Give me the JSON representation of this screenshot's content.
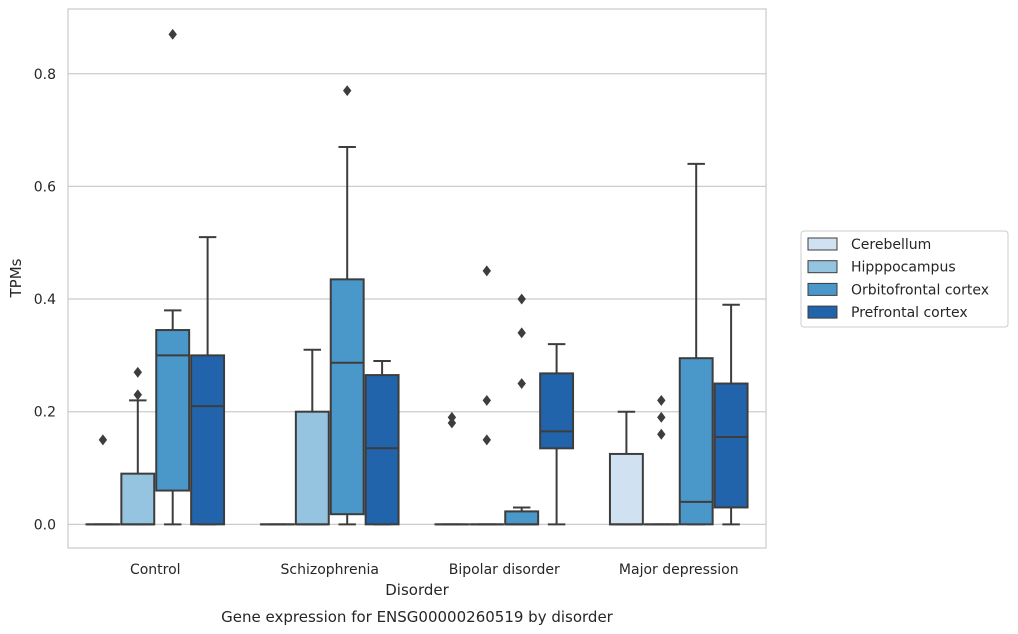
{
  "chart_data": {
    "type": "box",
    "xlabel": "Disorder",
    "ylabel": "TPMs",
    "caption": "Gene expression for ENSG00000260519 by disorder",
    "ylim": [
      -0.042,
      0.915
    ],
    "yticks": [
      0.0,
      0.2,
      0.4,
      0.6,
      0.8
    ],
    "ytick_labels": [
      "0.0",
      "0.2",
      "0.4",
      "0.6",
      "0.8"
    ],
    "grid": "horizontal",
    "legend_position": "right",
    "categories": [
      "Control",
      "Schizophrenia",
      "Bipolar disorder",
      "Major depression"
    ],
    "series": [
      {
        "name": "Cerebellum",
        "color": "#d0e1f2",
        "boxes": [
          {
            "q1": 0,
            "median": 0,
            "q3": 0,
            "whisker_low": 0,
            "whisker_high": 0,
            "outliers": [
              0.15
            ]
          },
          {
            "q1": 0,
            "median": 0,
            "q3": 0,
            "whisker_low": 0,
            "whisker_high": 0,
            "outliers": []
          },
          {
            "q1": 0,
            "median": 0,
            "q3": 0,
            "whisker_low": 0,
            "whisker_high": 0,
            "outliers": [
              0.18,
              0.19
            ]
          },
          {
            "q1": 0,
            "median": 0,
            "q3": 0.125,
            "whisker_low": 0,
            "whisker_high": 0.2,
            "outliers": []
          }
        ]
      },
      {
        "name": "Hipppocampus",
        "color": "#94c4df",
        "boxes": [
          {
            "q1": 0,
            "median": 0,
            "q3": 0.09,
            "whisker_low": 0,
            "whisker_high": 0.22,
            "outliers": [
              0.23,
              0.27
            ]
          },
          {
            "q1": 0,
            "median": 0,
            "q3": 0.2,
            "whisker_low": 0,
            "whisker_high": 0.31,
            "outliers": []
          },
          {
            "q1": 0,
            "median": 0,
            "q3": 0,
            "whisker_low": 0,
            "whisker_high": 0,
            "outliers": [
              0.15,
              0.22,
              0.45
            ]
          },
          {
            "q1": 0,
            "median": 0,
            "q3": 0,
            "whisker_low": 0,
            "whisker_high": 0,
            "outliers": [
              0.16,
              0.19,
              0.22
            ]
          }
        ]
      },
      {
        "name": "Orbitofrontal cortex",
        "color": "#4a98c9",
        "boxes": [
          {
            "q1": 0.06,
            "median": 0.3,
            "q3": 0.345,
            "whisker_low": 0,
            "whisker_high": 0.38,
            "outliers": [
              0.87
            ]
          },
          {
            "q1": 0.018,
            "median": 0.287,
            "q3": 0.435,
            "whisker_low": 0,
            "whisker_high": 0.67,
            "outliers": [
              0.77
            ]
          },
          {
            "q1": 0,
            "median": 0,
            "q3": 0.023,
            "whisker_low": 0,
            "whisker_high": 0.03,
            "outliers": [
              0.25,
              0.34,
              0.4
            ]
          },
          {
            "q1": 0,
            "median": 0.04,
            "q3": 0.295,
            "whisker_low": 0,
            "whisker_high": 0.64,
            "outliers": []
          }
        ]
      },
      {
        "name": "Prefrontal cortex",
        "color": "#2164ab",
        "boxes": [
          {
            "q1": 0,
            "median": 0.21,
            "q3": 0.3,
            "whisker_low": 0,
            "whisker_high": 0.51,
            "outliers": []
          },
          {
            "q1": 0,
            "median": 0.135,
            "q3": 0.265,
            "whisker_low": 0,
            "whisker_high": 0.29,
            "outliers": []
          },
          {
            "q1": 0.135,
            "median": 0.165,
            "q3": 0.268,
            "whisker_low": 0,
            "whisker_high": 0.32,
            "outliers": []
          },
          {
            "q1": 0.03,
            "median": 0.155,
            "q3": 0.25,
            "whisker_low": 0,
            "whisker_high": 0.39,
            "outliers": []
          }
        ]
      }
    ]
  }
}
